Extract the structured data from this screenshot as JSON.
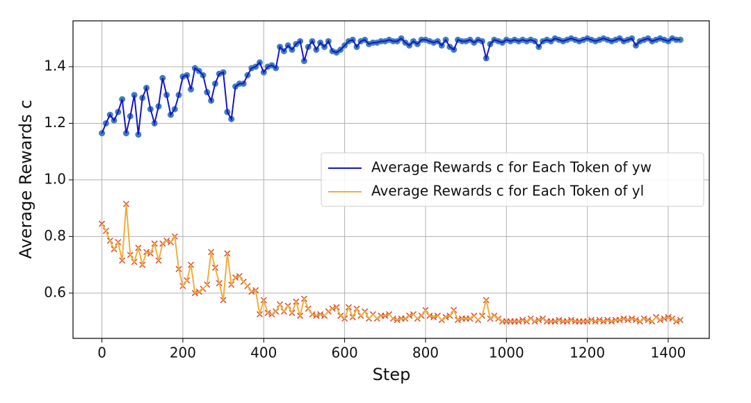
{
  "chart_data": {
    "type": "line",
    "xlabel": "Step",
    "ylabel": "Average Rewards c",
    "x": [
      0,
      10,
      20,
      30,
      40,
      50,
      60,
      70,
      80,
      90,
      100,
      110,
      120,
      130,
      140,
      150,
      160,
      170,
      180,
      190,
      200,
      210,
      220,
      230,
      240,
      250,
      260,
      270,
      280,
      290,
      300,
      310,
      320,
      330,
      340,
      350,
      360,
      370,
      380,
      390,
      400,
      410,
      420,
      430,
      440,
      450,
      460,
      470,
      480,
      490,
      500,
      510,
      520,
      530,
      540,
      550,
      560,
      570,
      580,
      590,
      600,
      610,
      620,
      630,
      640,
      650,
      660,
      670,
      680,
      690,
      700,
      710,
      720,
      730,
      740,
      750,
      760,
      770,
      780,
      790,
      800,
      810,
      820,
      830,
      840,
      850,
      860,
      870,
      880,
      890,
      900,
      910,
      920,
      930,
      940,
      950,
      960,
      970,
      980,
      990,
      1000,
      1010,
      1020,
      1030,
      1040,
      1050,
      1060,
      1070,
      1080,
      1090,
      1100,
      1110,
      1120,
      1130,
      1140,
      1150,
      1160,
      1170,
      1180,
      1190,
      1200,
      1210,
      1220,
      1230,
      1240,
      1250,
      1260,
      1270,
      1280,
      1290,
      1300,
      1310,
      1320,
      1330,
      1340,
      1350,
      1360,
      1370,
      1380,
      1390,
      1400,
      1410,
      1420,
      1430
    ],
    "series": [
      {
        "name": "Average Rewards c for Each Token of yw",
        "color": "#1414c8",
        "marker_color": "#3f7fbf",
        "marker": "circle",
        "values": [
          1.165,
          1.2,
          1.23,
          1.21,
          1.24,
          1.285,
          1.165,
          1.225,
          1.3,
          1.16,
          1.29,
          1.325,
          1.25,
          1.2,
          1.26,
          1.36,
          1.3,
          1.23,
          1.25,
          1.3,
          1.365,
          1.37,
          1.32,
          1.395,
          1.385,
          1.37,
          1.31,
          1.28,
          1.34,
          1.375,
          1.38,
          1.24,
          1.215,
          1.33,
          1.34,
          1.34,
          1.37,
          1.395,
          1.4,
          1.415,
          1.38,
          1.4,
          1.405,
          1.395,
          1.47,
          1.455,
          1.475,
          1.46,
          1.48,
          1.49,
          1.42,
          1.47,
          1.49,
          1.46,
          1.485,
          1.47,
          1.49,
          1.455,
          1.45,
          1.46,
          1.475,
          1.49,
          1.495,
          1.47,
          1.49,
          1.495,
          1.48,
          1.485,
          1.485,
          1.49,
          1.49,
          1.495,
          1.49,
          1.49,
          1.5,
          1.485,
          1.475,
          1.49,
          1.48,
          1.495,
          1.495,
          1.49,
          1.485,
          1.49,
          1.475,
          1.495,
          1.47,
          1.46,
          1.495,
          1.49,
          1.49,
          1.495,
          1.485,
          1.495,
          1.49,
          1.43,
          1.48,
          1.495,
          1.49,
          1.485,
          1.495,
          1.49,
          1.495,
          1.49,
          1.495,
          1.49,
          1.495,
          1.49,
          1.47,
          1.49,
          1.495,
          1.49,
          1.5,
          1.495,
          1.49,
          1.495,
          1.5,
          1.495,
          1.49,
          1.495,
          1.5,
          1.495,
          1.49,
          1.495,
          1.5,
          1.495,
          1.49,
          1.495,
          1.5,
          1.49,
          1.495,
          1.5,
          1.475,
          1.49,
          1.495,
          1.5,
          1.49,
          1.495,
          1.5,
          1.495,
          1.49,
          1.5,
          1.495,
          1.495
        ]
      },
      {
        "name": "Average Rewards c for Each Token of yl",
        "color": "#f0ad3a",
        "marker_color": "#d9482b",
        "marker": "x",
        "values": [
          0.845,
          0.82,
          0.785,
          0.755,
          0.78,
          0.715,
          0.915,
          0.735,
          0.71,
          0.76,
          0.7,
          0.745,
          0.74,
          0.775,
          0.715,
          0.775,
          0.785,
          0.78,
          0.8,
          0.685,
          0.625,
          0.645,
          0.7,
          0.6,
          0.605,
          0.615,
          0.63,
          0.745,
          0.69,
          0.635,
          0.575,
          0.74,
          0.63,
          0.655,
          0.66,
          0.64,
          0.625,
          0.605,
          0.61,
          0.525,
          0.575,
          0.53,
          0.525,
          0.535,
          0.56,
          0.535,
          0.555,
          0.53,
          0.57,
          0.52,
          0.58,
          0.545,
          0.525,
          0.52,
          0.525,
          0.52,
          0.535,
          0.545,
          0.55,
          0.52,
          0.51,
          0.55,
          0.515,
          0.545,
          0.52,
          0.535,
          0.51,
          0.525,
          0.51,
          0.52,
          0.52,
          0.525,
          0.51,
          0.505,
          0.51,
          0.51,
          0.52,
          0.525,
          0.51,
          0.52,
          0.54,
          0.52,
          0.515,
          0.52,
          0.505,
          0.515,
          0.52,
          0.54,
          0.505,
          0.51,
          0.51,
          0.51,
          0.52,
          0.505,
          0.52,
          0.575,
          0.51,
          0.52,
          0.51,
          0.5,
          0.5,
          0.5,
          0.5,
          0.5,
          0.505,
          0.5,
          0.51,
          0.5,
          0.505,
          0.51,
          0.5,
          0.5,
          0.5,
          0.505,
          0.5,
          0.5,
          0.505,
          0.5,
          0.5,
          0.5,
          0.5,
          0.505,
          0.5,
          0.505,
          0.5,
          0.505,
          0.5,
          0.505,
          0.505,
          0.51,
          0.505,
          0.51,
          0.505,
          0.5,
          0.51,
          0.505,
          0.5,
          0.515,
          0.505,
          0.51,
          0.515,
          0.51,
          0.5,
          0.505
        ]
      }
    ],
    "xlim": [
      -71.5,
      1501.5
    ],
    "xticks": [
      0,
      200,
      400,
      600,
      800,
      1000,
      1200,
      1400
    ],
    "ylim": [
      0.44,
      1.562
    ],
    "yticks": [
      0.6,
      0.8,
      {
        "value": 1,
        "label": "1.0"
      },
      1.2,
      1.4
    ],
    "grid": true,
    "legend": "center right"
  }
}
